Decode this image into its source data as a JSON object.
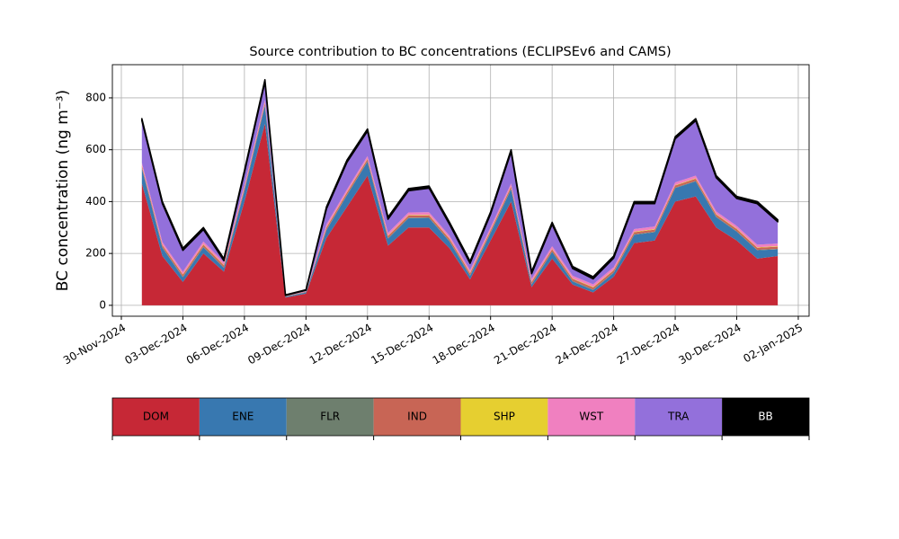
{
  "chart_data": {
    "type": "stacked_area",
    "title": "Source contribution to BC concentrations (ECLIPSEv6 and CAMS)",
    "y_label": "BC concentration (ng m⁻³)",
    "x": [
      "2024-12-01",
      "2024-12-02",
      "2024-12-03",
      "2024-12-04",
      "2024-12-05",
      "2024-12-06",
      "2024-12-07",
      "2024-12-08",
      "2024-12-09",
      "2024-12-10",
      "2024-12-11",
      "2024-12-12",
      "2024-12-13",
      "2024-12-14",
      "2024-12-15",
      "2024-12-16",
      "2024-12-17",
      "2024-12-18",
      "2024-12-19",
      "2024-12-20",
      "2024-12-21",
      "2024-12-22",
      "2024-12-23",
      "2024-12-24",
      "2024-12-25",
      "2024-12-26",
      "2024-12-27",
      "2024-12-28",
      "2024-12-29",
      "2024-12-30",
      "2024-12-31",
      "2025-01-01"
    ],
    "series": [
      {
        "name": "DOM",
        "color": "#c62836",
        "values": [
          470,
          190,
          90,
          200,
          130,
          400,
          700,
          30,
          45,
          260,
          380,
          500,
          230,
          300,
          300,
          220,
          100,
          250,
          400,
          70,
          180,
          80,
          50,
          110,
          240,
          250,
          400,
          420,
          300,
          250,
          180,
          190
        ]
      },
      {
        "name": "ENE",
        "color": "#3878b0",
        "values": [
          58,
          32,
          18,
          24,
          14,
          42,
          70,
          3,
          5,
          30,
          45,
          54,
          27,
          36,
          37,
          26,
          14,
          29,
          48,
          10,
          26,
          12,
          9,
          15,
          32,
          32,
          52,
          58,
          40,
          34,
          32,
          26
        ]
      },
      {
        "name": "FLR",
        "color": "#6e7f6e",
        "values": [
          2,
          2,
          2,
          2,
          2,
          2,
          2,
          1,
          1,
          2,
          2,
          2,
          2,
          2,
          2,
          2,
          2,
          2,
          2,
          2,
          2,
          2,
          2,
          2,
          2,
          2,
          2,
          2,
          2,
          2,
          2,
          2
        ]
      },
      {
        "name": "IND",
        "color": "#c86555",
        "values": [
          8,
          8,
          8,
          8,
          8,
          8,
          8,
          1,
          2,
          8,
          8,
          8,
          8,
          8,
          8,
          8,
          8,
          8,
          8,
          8,
          8,
          8,
          8,
          8,
          8,
          8,
          8,
          8,
          8,
          8,
          8,
          8
        ]
      },
      {
        "name": "SHP",
        "color": "#e6cf30",
        "values": [
          2,
          2,
          2,
          2,
          2,
          2,
          2,
          0,
          0,
          2,
          2,
          2,
          2,
          2,
          2,
          2,
          2,
          2,
          2,
          2,
          2,
          2,
          2,
          2,
          2,
          2,
          2,
          2,
          2,
          2,
          2,
          2
        ]
      },
      {
        "name": "WST",
        "color": "#f080c0",
        "values": [
          10,
          10,
          10,
          10,
          10,
          10,
          10,
          1,
          2,
          10,
          10,
          10,
          10,
          10,
          10,
          10,
          10,
          10,
          10,
          10,
          10,
          10,
          10,
          10,
          10,
          10,
          10,
          10,
          10,
          10,
          10,
          10
        ]
      },
      {
        "name": "TRA",
        "color": "#9370db",
        "values": [
          162,
          148,
          82,
          46,
          6,
          48,
          70,
          2,
          3,
          60,
          105,
          96,
          53,
          84,
          93,
          44,
          26,
          51,
          122,
          20,
          84,
          28,
          21,
          35,
          98,
          88,
          168,
          212,
          130,
          106,
          158,
          84
        ]
      },
      {
        "name": "BB",
        "color": "#000000",
        "values": [
          8,
          8,
          8,
          8,
          8,
          8,
          8,
          2,
          2,
          8,
          8,
          8,
          8,
          8,
          8,
          8,
          8,
          8,
          8,
          8,
          8,
          8,
          8,
          8,
          8,
          8,
          8,
          8,
          8,
          8,
          8,
          8
        ]
      }
    ],
    "xlim": [
      "2024-11-29T13:30:00Z",
      "2025-01-02T12:40:00Z"
    ],
    "xticks": [
      {
        "value": "2024-11-30",
        "label": "30-Nov-2024"
      },
      {
        "value": "2024-12-03",
        "label": "03-Dec-2024"
      },
      {
        "value": "2024-12-06",
        "label": "06-Dec-2024"
      },
      {
        "value": "2024-12-09",
        "label": "09-Dec-2024"
      },
      {
        "value": "2024-12-12",
        "label": "12-Dec-2024"
      },
      {
        "value": "2024-12-15",
        "label": "15-Dec-2024"
      },
      {
        "value": "2024-12-18",
        "label": "18-Dec-2024"
      },
      {
        "value": "2024-12-21",
        "label": "21-Dec-2024"
      },
      {
        "value": "2024-12-24",
        "label": "24-Dec-2024"
      },
      {
        "value": "2024-12-27",
        "label": "27-Dec-2024"
      },
      {
        "value": "2024-12-30",
        "label": "30-Dec-2024"
      },
      {
        "value": "2025-01-02",
        "label": "02-Jan-2025"
      }
    ],
    "ylim": [
      -42,
      928
    ],
    "yticks": [
      0,
      200,
      400,
      600,
      800
    ],
    "grid": true,
    "legend": "bottom"
  }
}
